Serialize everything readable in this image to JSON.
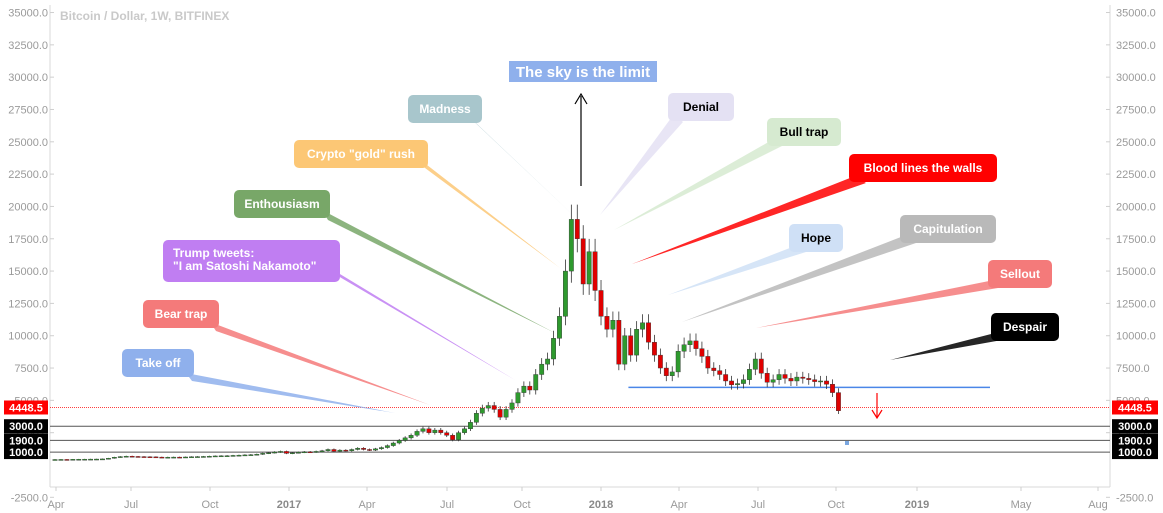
{
  "title": "Bitcoin / Dollar, 1W, BITFINEX",
  "chart_data": {
    "type": "candlestick",
    "y_ticks": [
      "35000.0",
      "32500.0",
      "30000.0",
      "27500.0",
      "25000.0",
      "22500.0",
      "20000.0",
      "17500.0",
      "15000.0",
      "12500.0",
      "10000.0",
      "7500.0",
      "5000.0",
      "2500.0",
      "-2500.0"
    ],
    "x_ticks": [
      "Apr",
      "Jul",
      "Oct",
      "2017",
      "Apr",
      "Jul",
      "Oct",
      "2018",
      "Apr",
      "Jul",
      "Oct",
      "2019",
      "May",
      "Aug"
    ],
    "x_ticks_bold": [
      false,
      false,
      false,
      true,
      false,
      false,
      false,
      true,
      false,
      false,
      false,
      true,
      false,
      false
    ],
    "ylim": [
      -3000,
      35000
    ],
    "price_marker": {
      "value": 4448.5,
      "label": "4448.5",
      "color": "#ff0000"
    },
    "levels": [
      {
        "value": 3000,
        "label": "3000.0"
      },
      {
        "value": 1900,
        "label": "1900.0"
      },
      {
        "value": 1000,
        "label": "1000.0"
      }
    ],
    "support_line": {
      "value": 6000,
      "from_week": 132,
      "to_week": 190,
      "color": "#4a86e8"
    },
    "candles": [
      [
        0,
        420,
        425
      ],
      [
        1,
        425,
        430
      ],
      [
        2,
        430,
        428
      ],
      [
        3,
        428,
        440
      ],
      [
        4,
        440,
        445
      ],
      [
        5,
        445,
        450
      ],
      [
        6,
        450,
        455
      ],
      [
        7,
        455,
        460
      ],
      [
        8,
        460,
        470
      ],
      [
        9,
        470,
        520
      ],
      [
        10,
        520,
        600
      ],
      [
        11,
        600,
        650
      ],
      [
        12,
        650,
        680
      ],
      [
        13,
        680,
        660
      ],
      [
        14,
        660,
        650
      ],
      [
        15,
        650,
        640
      ],
      [
        16,
        640,
        630
      ],
      [
        17,
        630,
        610
      ],
      [
        18,
        610,
        600
      ],
      [
        19,
        600,
        605
      ],
      [
        20,
        605,
        610
      ],
      [
        21,
        610,
        600
      ],
      [
        22,
        600,
        620
      ],
      [
        23,
        620,
        640
      ],
      [
        24,
        640,
        650
      ],
      [
        25,
        650,
        660
      ],
      [
        26,
        660,
        680
      ],
      [
        27,
        680,
        700
      ],
      [
        28,
        700,
        710
      ],
      [
        29,
        710,
        720
      ],
      [
        30,
        720,
        740
      ],
      [
        31,
        740,
        760
      ],
      [
        32,
        760,
        780
      ],
      [
        33,
        780,
        800
      ],
      [
        34,
        800,
        830
      ],
      [
        35,
        830,
        900
      ],
      [
        36,
        900,
        950
      ],
      [
        37,
        950,
        1000
      ],
      [
        38,
        1000,
        1050
      ],
      [
        39,
        1050,
        900
      ],
      [
        40,
        900,
        950
      ],
      [
        41,
        950,
        980
      ],
      [
        42,
        980,
        1020
      ],
      [
        43,
        1020,
        1000
      ],
      [
        44,
        1000,
        1050
      ],
      [
        45,
        1050,
        1100
      ],
      [
        46,
        1100,
        1200
      ],
      [
        47,
        1200,
        1050
      ],
      [
        48,
        1050,
        1150
      ],
      [
        49,
        1150,
        1100
      ],
      [
        50,
        1100,
        1200
      ],
      [
        51,
        1200,
        1300
      ],
      [
        52,
        1300,
        1200
      ],
      [
        53,
        1200,
        1150
      ],
      [
        54,
        1150,
        1250
      ],
      [
        55,
        1250,
        1350
      ],
      [
        56,
        1350,
        1500
      ],
      [
        57,
        1500,
        1700
      ],
      [
        58,
        1700,
        1900
      ],
      [
        59,
        1900,
        2100
      ],
      [
        60,
        2100,
        2300
      ],
      [
        61,
        2300,
        2600
      ],
      [
        62,
        2600,
        2800
      ],
      [
        63,
        2800,
        2500
      ],
      [
        64,
        2500,
        2700
      ],
      [
        65,
        2700,
        2500
      ],
      [
        66,
        2500,
        2300
      ],
      [
        67,
        2300,
        1950
      ],
      [
        68,
        1950,
        2500
      ],
      [
        69,
        2500,
        2800
      ],
      [
        70,
        2800,
        3300
      ],
      [
        71,
        3300,
        4000
      ],
      [
        72,
        4000,
        4400
      ],
      [
        73,
        4400,
        4600
      ],
      [
        74,
        4600,
        4300
      ],
      [
        75,
        4300,
        3700
      ],
      [
        76,
        3700,
        4300
      ],
      [
        77,
        4300,
        4800
      ],
      [
        78,
        4800,
        5600
      ],
      [
        79,
        5600,
        6100
      ],
      [
        80,
        6100,
        5800
      ],
      [
        81,
        5800,
        7000
      ],
      [
        82,
        7000,
        7800
      ],
      [
        83,
        7800,
        8200
      ],
      [
        84,
        8200,
        9800
      ],
      [
        85,
        9800,
        11500
      ],
      [
        86,
        11500,
        15000
      ],
      [
        87,
        15000,
        19000
      ],
      [
        88,
        19000,
        17500
      ],
      [
        89,
        17500,
        14000
      ],
      [
        90,
        14000,
        16500
      ],
      [
        91,
        16500,
        13500
      ],
      [
        92,
        13500,
        11500
      ],
      [
        93,
        11500,
        10500
      ],
      [
        94,
        10500,
        11200
      ],
      [
        95,
        11200,
        7800
      ],
      [
        96,
        7800,
        10000
      ],
      [
        97,
        10000,
        8500
      ],
      [
        98,
        8500,
        10500
      ],
      [
        99,
        10500,
        11000
      ],
      [
        100,
        11000,
        9500
      ],
      [
        101,
        9500,
        8500
      ],
      [
        102,
        8500,
        7500
      ],
      [
        103,
        7500,
        6900
      ],
      [
        104,
        6900,
        7200
      ],
      [
        105,
        7200,
        8800
      ],
      [
        106,
        8800,
        9300
      ],
      [
        107,
        9300,
        9600
      ],
      [
        108,
        9600,
        9000
      ],
      [
        109,
        9000,
        8400
      ],
      [
        110,
        8400,
        7500
      ],
      [
        111,
        7500,
        7300
      ],
      [
        112,
        7300,
        7000
      ],
      [
        113,
        7000,
        6500
      ],
      [
        114,
        6500,
        6200
      ],
      [
        115,
        6200,
        6300
      ],
      [
        116,
        6300,
        6600
      ],
      [
        117,
        6600,
        7400
      ],
      [
        118,
        7400,
        8200
      ],
      [
        119,
        8200,
        7100
      ],
      [
        120,
        7100,
        6400
      ],
      [
        121,
        6400,
        6600
      ],
      [
        122,
        6600,
        7000
      ],
      [
        123,
        7000,
        6700
      ],
      [
        124,
        6700,
        6500
      ],
      [
        125,
        6500,
        6800
      ],
      [
        126,
        6800,
        6700
      ],
      [
        127,
        6700,
        6600
      ],
      [
        128,
        6600,
        6450
      ],
      [
        129,
        6450,
        6500
      ],
      [
        130,
        6500,
        6250
      ],
      [
        131,
        6250,
        5600
      ],
      [
        132,
        5600,
        4200
      ]
    ]
  },
  "callouts": [
    {
      "text": "Take off",
      "bg": "#8fb0ec",
      "fg": "#ffffff"
    },
    {
      "text": "Bear trap",
      "bg": "#f47a7a",
      "fg": "#ffffff"
    },
    {
      "text": "Trump tweets:\n\"I am Satoshi Nakamoto\"",
      "bg": "#c07ef2",
      "fg": "#ffffff"
    },
    {
      "text": "Enthousiasm",
      "bg": "#78a768",
      "fg": "#ffffff"
    },
    {
      "text": "Crypto \"gold\" rush",
      "bg": "#fcc775",
      "fg": "#ffffff"
    },
    {
      "text": "Madness",
      "bg": "#a8c6cc",
      "fg": "#ffffff"
    },
    {
      "text": "The sky is the limit",
      "bg": "#8fb0ec",
      "fg": "#ffffff"
    },
    {
      "text": "Denial",
      "bg": "#e4e1f3",
      "fg": "#000000"
    },
    {
      "text": "Bull trap",
      "bg": "#d6ead0",
      "fg": "#000000"
    },
    {
      "text": "Blood lines the walls",
      "bg": "#ff0000",
      "fg": "#ffffff"
    },
    {
      "text": "Hope",
      "bg": "#cfe0f6",
      "fg": "#000000"
    },
    {
      "text": "Capitulation",
      "bg": "#b9b9b9",
      "fg": "#ffffff"
    },
    {
      "text": "Sellout",
      "bg": "#f47a7a",
      "fg": "#ffffff"
    },
    {
      "text": "Despair",
      "bg": "#000000",
      "fg": "#ffffff"
    }
  ]
}
